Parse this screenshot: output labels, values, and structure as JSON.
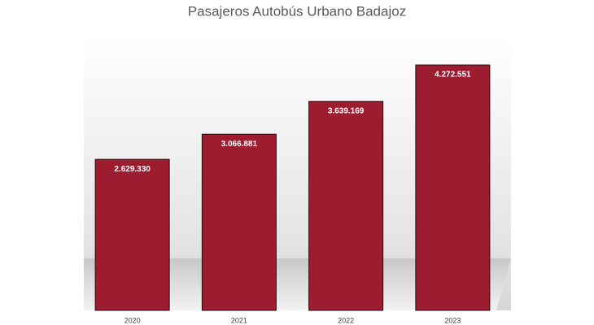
{
  "chart_data": {
    "type": "bar",
    "title": "Pasajeros Autobús Urbano Badajoz",
    "categories": [
      "2020",
      "2021",
      "2022",
      "2023"
    ],
    "values": [
      2629330,
      3066881,
      3639169,
      4272551
    ],
    "value_labels": [
      "2.629.330",
      "3.066.881",
      "3.639.169",
      "4.272.551"
    ],
    "color": "#9d1c2f"
  }
}
